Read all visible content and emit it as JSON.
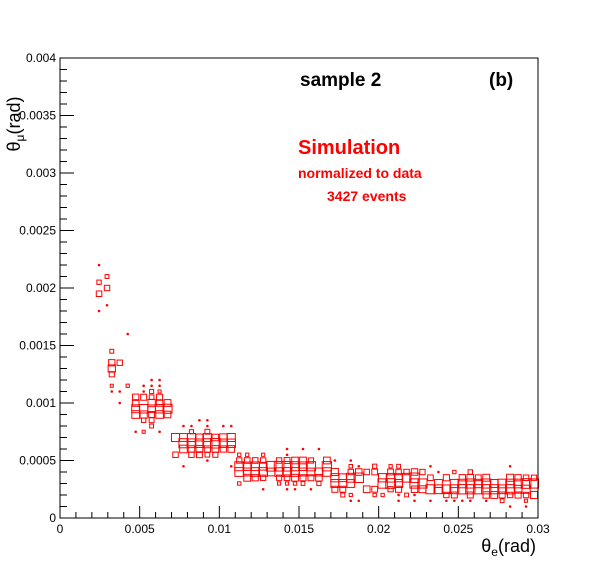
{
  "colors": {
    "marker": "#ff0000",
    "axis": "#000000",
    "background": "#ffffff"
  },
  "chart_data": {
    "type": "scatter",
    "subtype": "2d-histogram-box",
    "xlabel_main": "θ",
    "xlabel_sub": "e",
    "xlabel_unit": "(rad)",
    "ylabel_main": "θ",
    "ylabel_sub": "μ",
    "ylabel_unit": "(rad)",
    "xlim": [
      0,
      0.03
    ],
    "ylim": [
      0,
      0.004
    ],
    "x_ticks": [
      "0",
      "0.005",
      "0.01",
      "0.015",
      "0.02",
      "0.025",
      "0.03"
    ],
    "x_tick_values": [
      0,
      0.005,
      0.01,
      0.015,
      0.02,
      0.025,
      0.03
    ],
    "y_ticks": [
      "0",
      "0.0005",
      "0.001",
      "0.0015",
      "0.002",
      "0.0025",
      "0.003",
      "0.0035",
      "0.004"
    ],
    "y_tick_values": [
      0,
      0.0005,
      0.001,
      0.0015,
      0.002,
      0.0025,
      0.003,
      0.0035,
      0.004
    ],
    "grid": false,
    "annotations": {
      "sample": "sample 2",
      "panel": "(b)",
      "simulation": "Simulation",
      "normalized": "normalized to data",
      "events": "3427 events"
    },
    "bands": [
      {
        "x_start": 0.0022,
        "x_end": 0.003,
        "y_low": 0.0017,
        "y_high": 0.0023,
        "weight": 0.5
      },
      {
        "x_start": 0.003,
        "x_end": 0.0045,
        "y_low": 0.001,
        "y_high": 0.0016,
        "weight": 0.6
      },
      {
        "x_start": 0.0045,
        "x_end": 0.007,
        "y_low": 0.0007,
        "y_high": 0.0012,
        "weight": 0.8
      },
      {
        "x_start": 0.007,
        "x_end": 0.011,
        "y_low": 0.00045,
        "y_high": 0.00085,
        "weight": 0.9
      },
      {
        "x_start": 0.011,
        "x_end": 0.017,
        "y_low": 0.00025,
        "y_high": 0.0006,
        "weight": 1.0
      },
      {
        "x_start": 0.017,
        "x_end": 0.023,
        "y_low": 0.00015,
        "y_high": 0.0005,
        "weight": 1.0
      },
      {
        "x_start": 0.023,
        "x_end": 0.03,
        "y_low": 0.0001,
        "y_high": 0.00045,
        "weight": 1.0
      }
    ]
  }
}
